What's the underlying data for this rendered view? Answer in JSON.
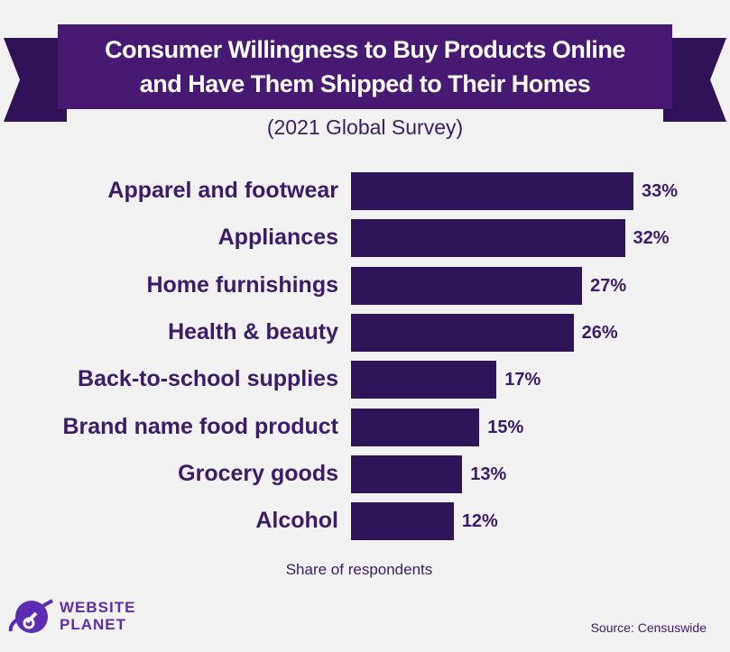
{
  "chart_data": {
    "type": "bar",
    "orientation": "horizontal",
    "title": "Consumer Willingness to Buy Products Online and Have Them Shipped to Their Homes",
    "title_lines": [
      "Consumer Willingness to Buy Products Online",
      "and Have Them Shipped to Their Homes"
    ],
    "subtitle": "(2021 Global Survey)",
    "xlabel": "Share of respondents",
    "ylabel": "",
    "categories": [
      "Apparel and footwear",
      "Appliances",
      "Home furnishings",
      "Health & beauty",
      "Back-to-school supplies",
      "Brand name food product",
      "Grocery goods",
      "Alcohol"
    ],
    "values": [
      33,
      32,
      27,
      26,
      17,
      15,
      13,
      12
    ],
    "value_labels": [
      "33%",
      "32%",
      "27%",
      "26%",
      "17%",
      "15%",
      "13%",
      "12%"
    ],
    "unit": "%",
    "xlim": [
      0,
      35
    ],
    "grid": false,
    "bar_color": "#2e1458",
    "banner_color": "#461a73"
  },
  "footer": {
    "source": "Source: Censuswide",
    "logo_line1": "WEBSITE",
    "logo_line2": "PLANET",
    "logo_color": "#5b2db3"
  }
}
